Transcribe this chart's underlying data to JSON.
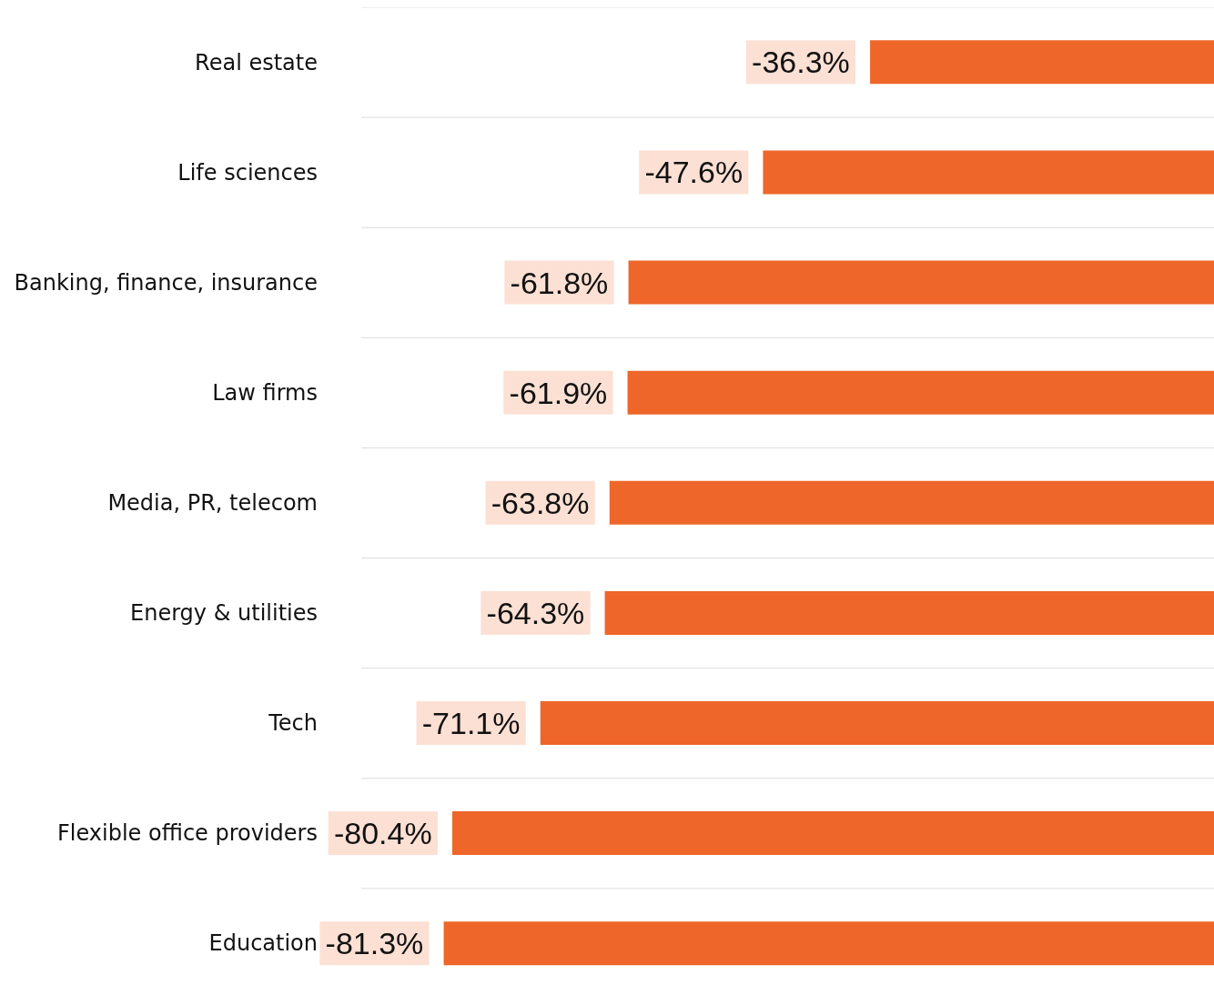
{
  "chart_data": {
    "type": "bar",
    "orientation": "horizontal",
    "categories": [
      "Real estate",
      "Life sciences",
      "Banking, finance, insurance",
      "Law firms",
      "Media, PR, telecom",
      "Energy & utilities",
      "Tech",
      "Flexible office providers",
      "Education"
    ],
    "values": [
      -36.3,
      -47.6,
      -61.8,
      -61.9,
      -63.8,
      -64.3,
      -71.1,
      -80.4,
      -81.3
    ],
    "value_labels": [
      "-36.3%",
      "-47.6%",
      "-61.8%",
      "-61.9%",
      "-63.8%",
      "-64.3%",
      "-71.1%",
      "-80.4%",
      "-81.3%"
    ],
    "color": "#ee6629",
    "xlim": [
      -90,
      0
    ],
    "grid": true,
    "tick_labels": "y"
  }
}
